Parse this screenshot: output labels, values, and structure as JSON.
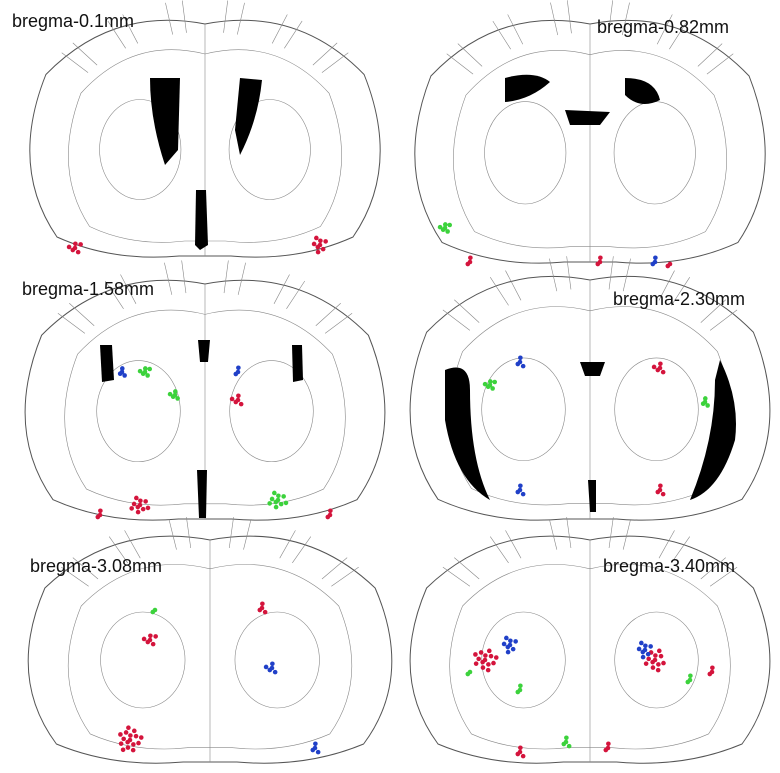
{
  "panels": [
    {
      "label": "bregma-0.1mm"
    },
    {
      "label": "bregma-0.82mm"
    },
    {
      "label": "bregma-1.58mm"
    },
    {
      "label": "bregma-2.30mm"
    },
    {
      "label": "bregma-3.08mm"
    },
    {
      "label": "bregma-3.40mm"
    }
  ]
}
